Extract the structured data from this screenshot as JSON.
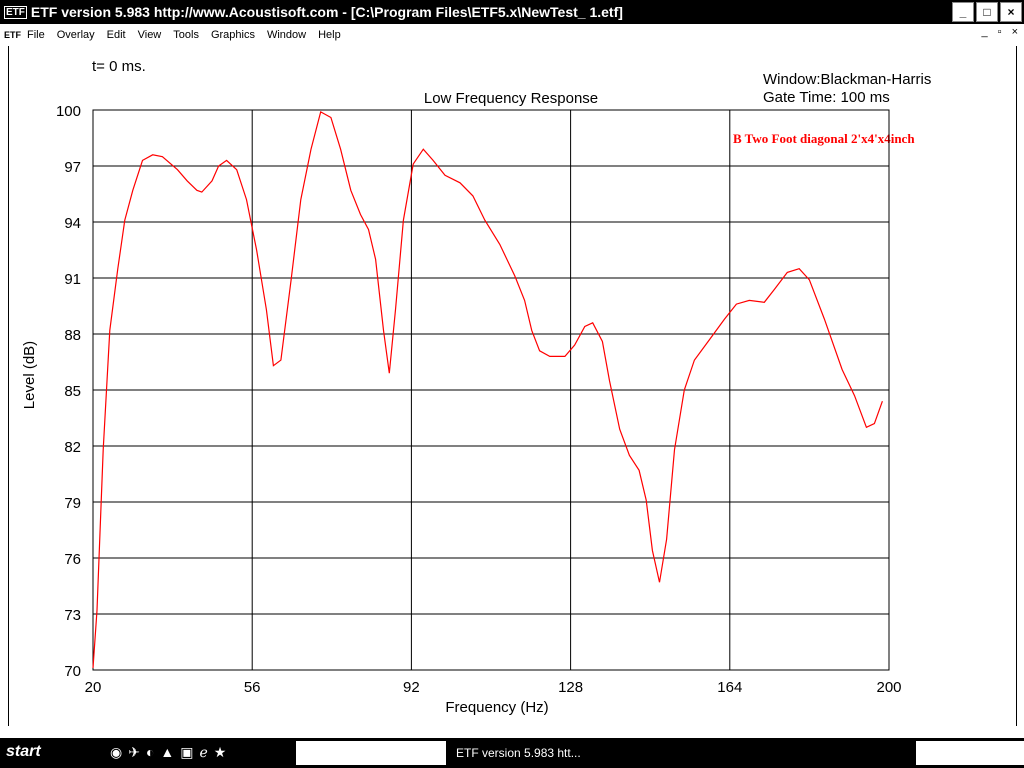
{
  "window": {
    "title": "ETF version 5.983 http://www.Acoustisoft.com - [C:\\Program Files\\ETF5.x\\NewTest_ 1.etf]",
    "logo": "ETF"
  },
  "menu": [
    "File",
    "Overlay",
    "Edit",
    "View",
    "Tools",
    "Graphics",
    "Window",
    "Help"
  ],
  "mdi_controls": [
    "_",
    "▫",
    "×"
  ],
  "taskbar": {
    "start": "start",
    "task_label": "ETF version 5.983 htt..."
  },
  "info": {
    "time": "t= 0 ms.",
    "window": "Window:Blackman-Harris",
    "gate": "Gate Time: 100 ms"
  },
  "chart_data": {
    "type": "line",
    "title": "Low Frequency Response",
    "xlabel": "Frequency (Hz)",
    "ylabel": "Level (dB)",
    "xlim": [
      20,
      200
    ],
    "ylim": [
      70,
      100
    ],
    "xticks": [
      20,
      56,
      92,
      128,
      164,
      200
    ],
    "yticks": [
      70,
      73,
      76,
      79,
      82,
      85,
      88,
      91,
      94,
      97,
      100
    ],
    "grid": true,
    "legend_position": "top-right",
    "series": [
      {
        "name": "B Two Foot diagonal 2'x4'x4inch",
        "color": "#ff0000",
        "x": [
          20,
          20.9,
          22.3,
          23.8,
          25.6,
          27.2,
          29,
          31.2,
          33.5,
          35.7,
          39.1,
          41.3,
          43.5,
          44.6,
          46.9,
          48.4,
          50.2,
          52.5,
          54.7,
          57,
          59.2,
          60.8,
          62.5,
          64.8,
          67,
          69.3,
          71.5,
          73.8,
          76,
          78.3,
          80.5,
          82.3,
          83.9,
          85.7,
          87,
          88.4,
          90.2,
          92.4,
          94.7,
          96.9,
          99.6,
          103,
          105.9,
          108.6,
          112,
          115.4,
          117.6,
          119.2,
          121,
          123.3,
          126.7,
          128.9,
          131.2,
          133,
          135.2,
          136.8,
          139.1,
          141.3,
          143.5,
          145.1,
          146.5,
          148.1,
          149.7,
          151.5,
          153.7,
          156,
          159.4,
          162.8,
          165.5,
          168.4,
          171.8,
          174.1,
          177,
          179.7,
          182,
          185.4,
          189.4,
          192.2,
          194.9,
          196.7,
          198.5
        ],
        "y": [
          70.1,
          73.2,
          81.8,
          88.2,
          91.5,
          94.1,
          95.7,
          97.3,
          97.6,
          97.5,
          96.8,
          96.2,
          95.7,
          95.6,
          96.2,
          97.0,
          97.3,
          96.8,
          95.2,
          92.5,
          89.3,
          86.3,
          86.6,
          90.9,
          95.2,
          97.9,
          99.9,
          99.6,
          97.9,
          95.7,
          94.4,
          93.6,
          92,
          88.2,
          85.9,
          89.3,
          94.1,
          97.1,
          97.9,
          97.3,
          96.5,
          96.1,
          95.4,
          94.1,
          92.8,
          91.1,
          89.8,
          88.2,
          87.1,
          86.8,
          86.8,
          87.4,
          88.4,
          88.6,
          87.6,
          85.5,
          82.9,
          81.5,
          80.7,
          79.1,
          76.4,
          74.7,
          77,
          81.8,
          85,
          86.6,
          87.7,
          88.8,
          89.6,
          89.8,
          89.7,
          90.4,
          91.3,
          91.5,
          90.9,
          88.8,
          86.1,
          84.7,
          83,
          83.2,
          84.4
        ]
      }
    ]
  }
}
